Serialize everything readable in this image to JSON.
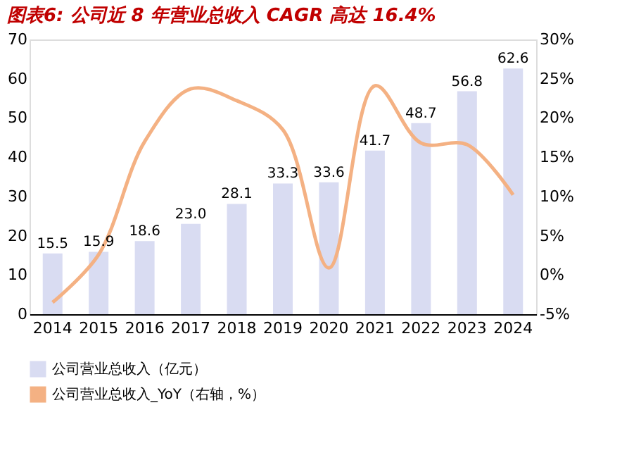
{
  "chart_data": {
    "type": "bar",
    "title": "图表6: 公司近 8 年营业总收入 CAGR 高达 16.4%",
    "categories": [
      "2014",
      "2015",
      "2016",
      "2017",
      "2018",
      "2019",
      "2020",
      "2021",
      "2022",
      "2023",
      "2024"
    ],
    "series": [
      {
        "name": "公司营业总收入（亿元）",
        "color": "#d9dcf2",
        "values": [
          15.5,
          15.9,
          18.6,
          23.0,
          28.1,
          33.3,
          33.6,
          41.7,
          48.7,
          56.8,
          62.6
        ],
        "value_labels": [
          "15.5",
          "15.9",
          "18.6",
          "23.0",
          "28.1",
          "33.3",
          "33.6",
          "41.7",
          "48.7",
          "56.8",
          "62.6"
        ]
      },
      {
        "name": "公司营业总收入_YoY（右轴，%）",
        "type": "line",
        "axis": "y2",
        "color": "#f4b183",
        "values": [
          -3.5,
          2.6,
          17.0,
          23.7,
          22.2,
          18.5,
          0.9,
          24.1,
          16.8,
          16.6,
          10.2
        ]
      }
    ],
    "ylim": [
      0,
      70
    ],
    "yticks": [
      0,
      10,
      20,
      30,
      40,
      50,
      60,
      70
    ],
    "y2lim": [
      -5,
      30
    ],
    "y2ticks": [
      {
        "value": -5,
        "label": "-5%"
      },
      {
        "value": 0,
        "label": "0%"
      },
      {
        "value": 5,
        "label": "5%"
      },
      {
        "value": 10,
        "label": "10%"
      },
      {
        "value": 15,
        "label": "15%"
      },
      {
        "value": 20,
        "label": "20%"
      },
      {
        "value": 25,
        "label": "25%"
      },
      {
        "value": 30,
        "label": "30%"
      }
    ],
    "legend": "bottom",
    "grid": false,
    "marker": "none"
  }
}
